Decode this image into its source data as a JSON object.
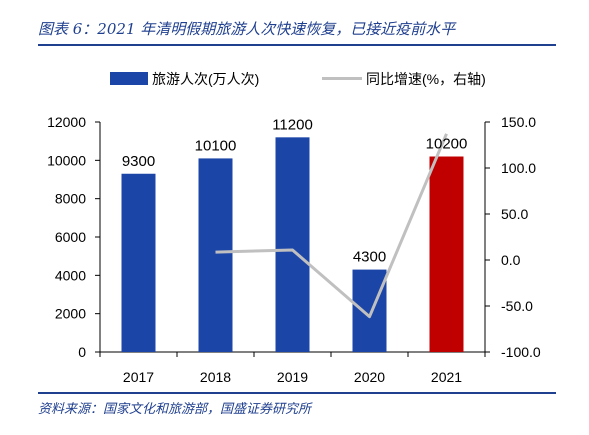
{
  "figure": {
    "title": "图表 6：2021 年清明假期旅游人次快速恢复，已接近疫前水平",
    "source": "资料来源：国家文化和旅游部，国盛证券研究所"
  },
  "chart_data": {
    "type": "bar",
    "categories": [
      "2017",
      "2018",
      "2019",
      "2020",
      "2021"
    ],
    "series": [
      {
        "name": "旅游人次(万人次)",
        "type": "bar",
        "axis": "left",
        "values": [
          9300,
          10100,
          11200,
          4300,
          10200
        ],
        "data_labels": [
          "9300",
          "10100",
          "11200",
          "4300",
          "10200"
        ],
        "colors": [
          "#1c45a8",
          "#1c45a8",
          "#1c45a8",
          "#1c45a8",
          "#c00000"
        ]
      },
      {
        "name": "同比增速(%，右轴)",
        "type": "line",
        "axis": "right",
        "values": [
          null,
          8.6,
          10.9,
          -61.6,
          137.2
        ],
        "color": "#c0c0c0"
      }
    ],
    "y_left": {
      "min": 0,
      "max": 12000,
      "ticks": [
        "0",
        "2000",
        "4000",
        "6000",
        "8000",
        "10000",
        "12000"
      ]
    },
    "y_right": {
      "min": -100,
      "max": 150,
      "ticks": [
        "-100.0",
        "-50.0",
        "0.0",
        "50.0",
        "100.0",
        "150.0"
      ]
    },
    "legend_position": "top",
    "grid": false
  }
}
